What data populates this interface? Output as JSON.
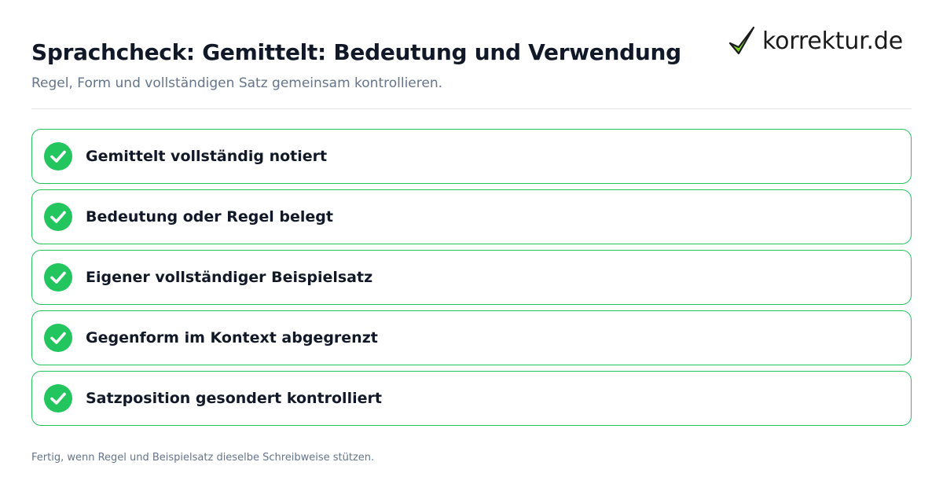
{
  "header": {
    "title": "Sprachcheck: Gemittelt: Bedeutung und Verwendung",
    "subtitle": "Regel, Form und vollständigen Satz gemeinsam kontrollieren."
  },
  "logo": {
    "text": "korrektur.de",
    "icon": "checkmark-icon",
    "check_color": "#7ed321"
  },
  "checklist": {
    "icon": "check-circle-icon",
    "accent_color": "#22c55e",
    "items": [
      {
        "label": "Gemittelt vollständig notiert",
        "checked": true
      },
      {
        "label": "Bedeutung oder Regel belegt",
        "checked": true
      },
      {
        "label": "Eigener vollständiger Beispielsatz",
        "checked": true
      },
      {
        "label": "Gegenform im Kontext abgegrenzt",
        "checked": true
      },
      {
        "label": "Satzposition gesondert kontrolliert",
        "checked": true
      }
    ]
  },
  "footer": {
    "text": "Fertig, wenn Regel und Beispielsatz dieselbe Schreibweise stützen."
  }
}
